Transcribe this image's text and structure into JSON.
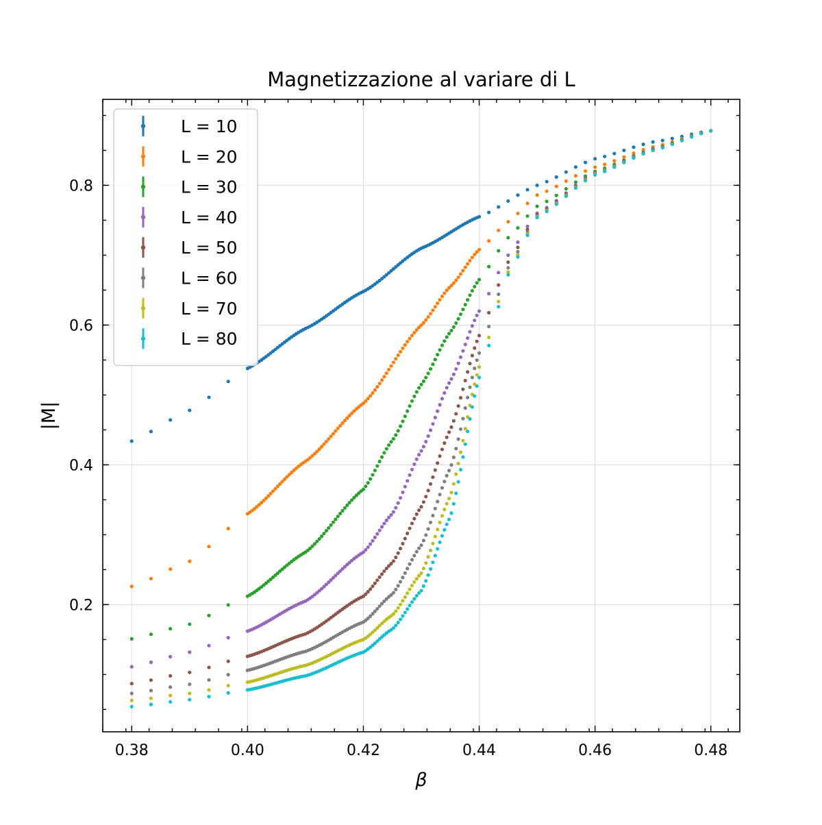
{
  "chart_data": {
    "type": "scatter",
    "title": "Magnetizzazione al variare di L",
    "xlabel": "β",
    "ylabel": "|M|",
    "xlim": [
      0.375,
      0.485
    ],
    "ylim": [
      0.018,
      0.923
    ],
    "xticks": [
      0.38,
      0.4,
      0.42,
      0.44,
      0.46,
      0.48
    ],
    "xtick_labels": [
      "0.38",
      "0.40",
      "0.42",
      "0.44",
      "0.46",
      "0.48"
    ],
    "yticks": [
      0.2,
      0.4,
      0.6,
      0.8
    ],
    "ytick_labels": [
      "0.2",
      "0.4",
      "0.6",
      "0.8"
    ],
    "grid": true,
    "legend_position": "upper-left",
    "x_sampling": {
      "coarse": [
        0.38,
        0.4
      ],
      "fine": [
        0.4,
        0.44
      ],
      "tail": [
        0.44,
        0.48
      ]
    },
    "series": [
      {
        "name": "L = 10",
        "color": "#1f77b4",
        "points": [
          [
            0.38,
            0.434
          ],
          [
            0.39,
            0.478
          ],
          [
            0.4,
            0.538
          ],
          [
            0.41,
            0.595
          ],
          [
            0.42,
            0.648
          ],
          [
            0.43,
            0.71
          ],
          [
            0.44,
            0.755
          ],
          [
            0.45,
            0.8
          ],
          [
            0.46,
            0.838
          ],
          [
            0.47,
            0.862
          ],
          [
            0.48,
            0.878
          ]
        ]
      },
      {
        "name": "L = 20",
        "color": "#ff7f0e",
        "points": [
          [
            0.38,
            0.226
          ],
          [
            0.39,
            0.262
          ],
          [
            0.4,
            0.33
          ],
          [
            0.41,
            0.405
          ],
          [
            0.42,
            0.488
          ],
          [
            0.43,
            0.6
          ],
          [
            0.435,
            0.655
          ],
          [
            0.44,
            0.708
          ],
          [
            0.445,
            0.748
          ],
          [
            0.45,
            0.786
          ],
          [
            0.46,
            0.826
          ],
          [
            0.47,
            0.855
          ],
          [
            0.48,
            0.878
          ]
        ]
      },
      {
        "name": "L = 30",
        "color": "#2ca02c",
        "points": [
          [
            0.38,
            0.151
          ],
          [
            0.39,
            0.172
          ],
          [
            0.4,
            0.212
          ],
          [
            0.41,
            0.275
          ],
          [
            0.42,
            0.365
          ],
          [
            0.425,
            0.435
          ],
          [
            0.43,
            0.515
          ],
          [
            0.435,
            0.59
          ],
          [
            0.44,
            0.665
          ],
          [
            0.445,
            0.725
          ],
          [
            0.45,
            0.77
          ],
          [
            0.46,
            0.82
          ],
          [
            0.47,
            0.852
          ],
          [
            0.48,
            0.878
          ]
        ]
      },
      {
        "name": "L = 40",
        "color": "#9467bd",
        "points": [
          [
            0.38,
            0.111
          ],
          [
            0.39,
            0.132
          ],
          [
            0.4,
            0.162
          ],
          [
            0.41,
            0.205
          ],
          [
            0.42,
            0.275
          ],
          [
            0.425,
            0.33
          ],
          [
            0.43,
            0.42
          ],
          [
            0.435,
            0.52
          ],
          [
            0.44,
            0.62
          ],
          [
            0.445,
            0.7
          ],
          [
            0.45,
            0.76
          ],
          [
            0.46,
            0.818
          ],
          [
            0.47,
            0.851
          ],
          [
            0.48,
            0.878
          ]
        ]
      },
      {
        "name": "L = 50",
        "color": "#8c564b",
        "points": [
          [
            0.38,
            0.087
          ],
          [
            0.39,
            0.103
          ],
          [
            0.4,
            0.126
          ],
          [
            0.41,
            0.158
          ],
          [
            0.42,
            0.212
          ],
          [
            0.425,
            0.26
          ],
          [
            0.43,
            0.34
          ],
          [
            0.435,
            0.45
          ],
          [
            0.44,
            0.585
          ],
          [
            0.445,
            0.69
          ],
          [
            0.45,
            0.758
          ],
          [
            0.46,
            0.817
          ],
          [
            0.47,
            0.851
          ],
          [
            0.48,
            0.878
          ]
        ]
      },
      {
        "name": "L = 60",
        "color": "#7f7f7f",
        "points": [
          [
            0.38,
            0.073
          ],
          [
            0.39,
            0.086
          ],
          [
            0.4,
            0.106
          ],
          [
            0.41,
            0.133
          ],
          [
            0.42,
            0.175
          ],
          [
            0.425,
            0.215
          ],
          [
            0.43,
            0.285
          ],
          [
            0.435,
            0.395
          ],
          [
            0.44,
            0.56
          ],
          [
            0.445,
            0.682
          ],
          [
            0.45,
            0.756
          ],
          [
            0.46,
            0.816
          ],
          [
            0.47,
            0.85
          ],
          [
            0.48,
            0.878
          ]
        ]
      },
      {
        "name": "L = 70",
        "color": "#bcbd22",
        "points": [
          [
            0.38,
            0.063
          ],
          [
            0.39,
            0.073
          ],
          [
            0.4,
            0.089
          ],
          [
            0.41,
            0.113
          ],
          [
            0.42,
            0.15
          ],
          [
            0.425,
            0.185
          ],
          [
            0.43,
            0.245
          ],
          [
            0.435,
            0.355
          ],
          [
            0.44,
            0.54
          ],
          [
            0.445,
            0.676
          ],
          [
            0.45,
            0.755
          ],
          [
            0.46,
            0.816
          ],
          [
            0.47,
            0.85
          ],
          [
            0.48,
            0.878
          ]
        ]
      },
      {
        "name": "L = 80",
        "color": "#17becf",
        "points": [
          [
            0.38,
            0.054
          ],
          [
            0.39,
            0.064
          ],
          [
            0.4,
            0.078
          ],
          [
            0.41,
            0.098
          ],
          [
            0.42,
            0.132
          ],
          [
            0.425,
            0.165
          ],
          [
            0.43,
            0.22
          ],
          [
            0.435,
            0.325
          ],
          [
            0.44,
            0.525
          ],
          [
            0.445,
            0.672
          ],
          [
            0.45,
            0.754
          ],
          [
            0.46,
            0.815
          ],
          [
            0.47,
            0.85
          ],
          [
            0.48,
            0.878
          ]
        ]
      }
    ]
  }
}
